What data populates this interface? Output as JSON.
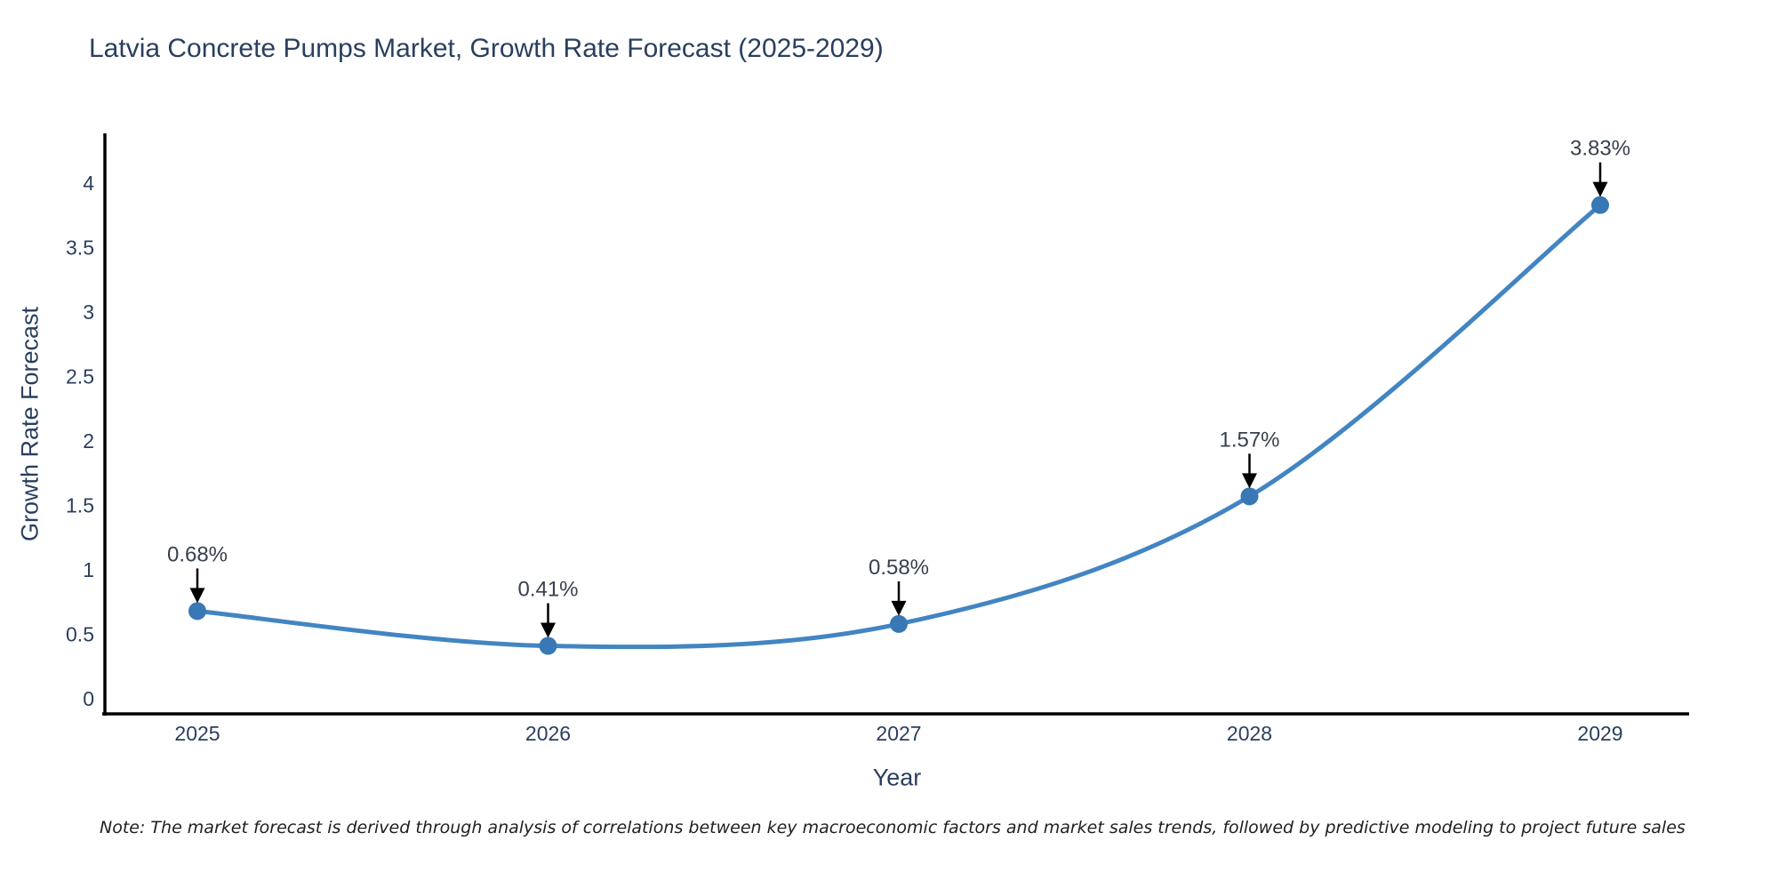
{
  "title": "Latvia Concrete Pumps Market, Growth Rate Forecast (2025-2029)",
  "note": "Note: The market forecast is derived through analysis of correlations between key macroeconomic factors and market sales trends, followed by predictive modeling to project future sales",
  "chart_data": {
    "type": "line",
    "title": "Latvia Concrete Pumps Market, Growth Rate Forecast (2025-2029)",
    "xlabel": "Year",
    "ylabel": "Growth Rate Forecast",
    "x": [
      2025,
      2026,
      2027,
      2028,
      2029
    ],
    "xticks": [
      "2025",
      "2026",
      "2027",
      "2028",
      "2029"
    ],
    "series": [
      {
        "name": "Growth Rate Forecast",
        "values": [
          0.68,
          0.41,
          0.58,
          1.57,
          3.83
        ]
      }
    ],
    "point_labels": [
      "0.68%",
      "0.41%",
      "0.58%",
      "1.57%",
      "3.83%"
    ],
    "ylim": [
      0,
      4
    ],
    "yticks": [
      0,
      0.5,
      1,
      1.5,
      2,
      2.5,
      3,
      3.5,
      4
    ],
    "grid": false,
    "legend": "none",
    "line_shape": "spline",
    "colors": {
      "line": "#4285c2",
      "marker": "#3878b4",
      "axis": "#000000",
      "tick_text": "#2a3f5f",
      "annotation_text": "#38414f",
      "arrow": "#000000"
    }
  }
}
